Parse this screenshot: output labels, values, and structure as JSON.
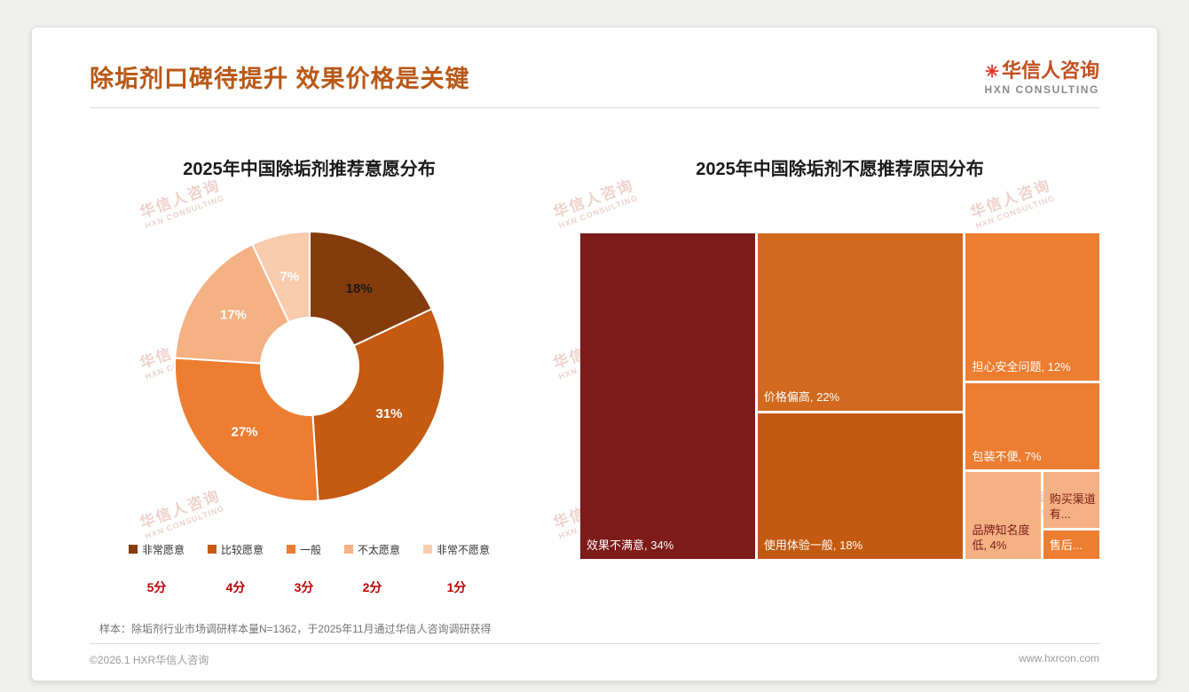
{
  "page": {
    "title": "除垢剂口碑待提升 效果价格是关键",
    "logo": {
      "mark": "✳",
      "name": "华信人咨询",
      "subtitle": "HXN CONSULTING"
    },
    "watermark": {
      "line1": "华信人咨询",
      "line2": "HXN CONSULTING"
    },
    "footnote": "样本：除垢剂行业市场调研样本量N=1362，于2025年11月通过华信人咨询调研获得",
    "footer": {
      "left": "©2026.1 HXR华信人咨询",
      "right": "www.hxrcon.com"
    }
  },
  "colors": {
    "title": "#b95816",
    "score_red": "#c00000"
  },
  "chart_data": [
    {
      "type": "pie",
      "subtype": "donut",
      "title": "2025年中国除垢剂推荐意愿分布",
      "categories": [
        "非常愿意",
        "比较愿意",
        "一般",
        "不太愿意",
        "非常不愿意"
      ],
      "values": [
        18,
        31,
        27,
        17,
        7
      ],
      "labels": [
        "18%",
        "31%",
        "27%",
        "17%",
        "7%"
      ],
      "scores": [
        "5分",
        "4分",
        "3分",
        "2分",
        "1分"
      ],
      "colors": [
        "#843C0C",
        "#C55A11",
        "#ED7D31",
        "#F4B183",
        "#F8CBAD"
      ],
      "label_colors": [
        "#1a1a1a",
        "#ffffff",
        "#ffffff",
        "#ffffff",
        "#ffffff"
      ],
      "legend_position": "bottom"
    },
    {
      "type": "treemap",
      "title": "2025年中国除垢剂不愿推荐原因分布",
      "items": [
        {
          "name": "效果不满意",
          "value": 34,
          "label": "效果不满意, 34%",
          "color": "#7D1A1A",
          "text_color": "#ffffff"
        },
        {
          "name": "价格偏高",
          "value": 22,
          "label": "价格偏高, 22%",
          "color": "#D2691E",
          "text_color": "#ffffff"
        },
        {
          "name": "使用体验一般",
          "value": 18,
          "label": "使用体验一般, 18%",
          "color": "#C45A11",
          "text_color": "#ffffff"
        },
        {
          "name": "担心安全问题",
          "value": 12,
          "label": "担心安全问题, 12%",
          "color": "#ED7D31",
          "text_color": "#ffffff"
        },
        {
          "name": "包装不便",
          "value": 7,
          "label": "包装不便, 7%",
          "color": "#ED7D31",
          "text_color": "#ffffff"
        },
        {
          "name": "品牌知名度低",
          "value": 4,
          "label": "品牌知名度低, 4%",
          "color": "#F4B183",
          "text_color": "#7D1A1A"
        },
        {
          "name": "购买渠道有...",
          "value": 2,
          "label": "购买渠道有...",
          "color": "#F4B183",
          "text_color": "#7D1A1A"
        },
        {
          "name": "售后...",
          "value": 1,
          "label": "售后...",
          "color": "#ED7D31",
          "text_color": "#ffffff"
        }
      ]
    }
  ]
}
